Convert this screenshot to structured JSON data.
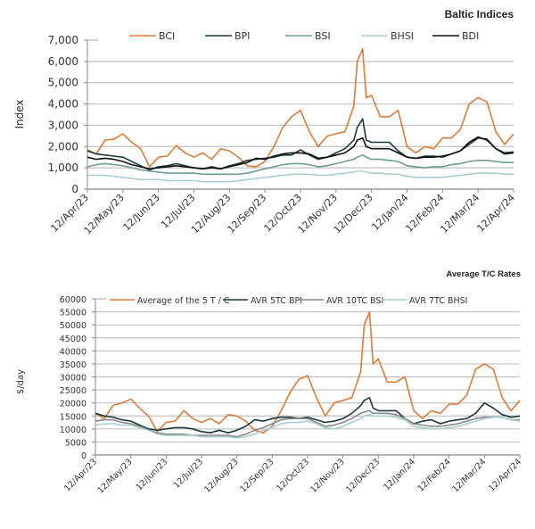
{
  "chart_data": [
    {
      "type": "line",
      "title": "Baltic Indices",
      "xlabel": "",
      "ylabel": "Index",
      "ylim": [
        0,
        7000
      ],
      "yticks": [
        0,
        1000,
        2000,
        3000,
        4000,
        5000,
        6000,
        7000
      ],
      "ytick_labels": [
        "0",
        "1,000",
        "2,000",
        "3,000",
        "4,000",
        "5,000",
        "6,000",
        "7,000"
      ],
      "grid": true,
      "legend_position": "top",
      "x_tick_labels": [
        "12/Apr/23",
        "12/May/23",
        "12/Jun/23",
        "12/Jul/23",
        "12/Aug/23",
        "12/Sep/23",
        "12/Oct/23",
        "12/Nov/23",
        "12/Dec/23",
        "12/Jan/24",
        "12/Feb/24",
        "12/Mar/24",
        "12/Apr/24"
      ],
      "x": [
        0,
        0.25,
        0.5,
        0.75,
        1,
        1.25,
        1.5,
        1.75,
        2,
        2.25,
        2.5,
        2.75,
        3,
        3.25,
        3.5,
        3.75,
        4,
        4.25,
        4.5,
        4.75,
        5,
        5.25,
        5.5,
        5.75,
        6,
        6.25,
        6.5,
        6.75,
        7,
        7.25,
        7.5,
        7.6,
        7.75,
        7.85,
        8,
        8.25,
        8.5,
        8.75,
        9,
        9.25,
        9.5,
        9.75,
        10,
        10.25,
        10.5,
        10.75,
        11,
        11.25,
        11.5,
        11.75,
        12
      ],
      "series": [
        {
          "name": "BCI",
          "color": "#e07b39",
          "values": [
            1850,
            1650,
            2300,
            2350,
            2600,
            2200,
            1900,
            1050,
            1500,
            1550,
            2050,
            1700,
            1500,
            1700,
            1400,
            1900,
            1800,
            1500,
            1100,
            1050,
            1300,
            2000,
            2900,
            3400,
            3700,
            2700,
            2000,
            2500,
            2600,
            2700,
            3900,
            6000,
            6600,
            4300,
            4400,
            3400,
            3400,
            3700,
            2000,
            1700,
            2000,
            1900,
            2400,
            2400,
            2800,
            4000,
            4300,
            4100,
            2700,
            2100,
            2600
          ]
        },
        {
          "name": "BPI",
          "color": "#1b3a3a",
          "values": [
            1800,
            1650,
            1600,
            1550,
            1500,
            1300,
            1100,
            900,
            1050,
            1100,
            1200,
            1100,
            1000,
            950,
            1050,
            950,
            1100,
            1200,
            1350,
            1400,
            1450,
            1500,
            1600,
            1600,
            1850,
            1600,
            1400,
            1500,
            1700,
            1900,
            2300,
            2900,
            3300,
            2300,
            2200,
            2200,
            2200,
            1800,
            1500,
            1450,
            1550,
            1550,
            1500,
            1650,
            1800,
            2100,
            2400,
            2350,
            1900,
            1700,
            1750
          ]
        },
        {
          "name": "BSI",
          "color": "#6e9c96",
          "values": [
            1050,
            1150,
            1200,
            1150,
            1100,
            1000,
            900,
            850,
            800,
            750,
            750,
            750,
            750,
            700,
            700,
            700,
            700,
            700,
            750,
            850,
            950,
            1050,
            1150,
            1200,
            1200,
            1150,
            1050,
            1100,
            1200,
            1300,
            1400,
            1500,
            1600,
            1500,
            1400,
            1400,
            1350,
            1300,
            1100,
            1050,
            1000,
            1050,
            1050,
            1150,
            1200,
            1300,
            1350,
            1350,
            1300,
            1250,
            1250
          ]
        },
        {
          "name": "BHSI",
          "color": "#a7cfcb",
          "values": [
            650,
            650,
            650,
            600,
            550,
            500,
            450,
            450,
            450,
            400,
            400,
            400,
            400,
            350,
            350,
            350,
            350,
            400,
            450,
            500,
            550,
            600,
            650,
            700,
            700,
            700,
            650,
            650,
            700,
            750,
            800,
            850,
            850,
            800,
            750,
            750,
            700,
            700,
            600,
            550,
            550,
            550,
            550,
            600,
            650,
            700,
            750,
            750,
            750,
            700,
            700
          ]
        },
        {
          "name": "BDI",
          "color": "#111111",
          "values": [
            1500,
            1400,
            1450,
            1400,
            1300,
            1150,
            1050,
            950,
            1000,
            1050,
            1100,
            1050,
            1000,
            950,
            1000,
            950,
            1050,
            1150,
            1250,
            1450,
            1400,
            1550,
            1650,
            1700,
            1700,
            1650,
            1450,
            1500,
            1600,
            1700,
            2000,
            2300,
            2400,
            2000,
            1900,
            1900,
            1900,
            1700,
            1500,
            1450,
            1500,
            1500,
            1550,
            1650,
            1800,
            2200,
            2450,
            2300,
            1900,
            1650,
            1700
          ]
        }
      ]
    },
    {
      "type": "line",
      "title": "Average T/C Rates",
      "xlabel": "",
      "ylabel": "$/day",
      "ylim": [
        0,
        60000
      ],
      "yticks": [
        0,
        5000,
        10000,
        15000,
        20000,
        25000,
        30000,
        35000,
        40000,
        45000,
        50000,
        55000,
        60000
      ],
      "ytick_labels": [
        "0",
        "5000",
        "10000",
        "15000",
        "20000",
        "25000",
        "30000",
        "35000",
        "40000",
        "45000",
        "50000",
        "55000",
        "60000"
      ],
      "grid": true,
      "legend_position": "top",
      "x_tick_labels": [
        "12/Apr/23",
        "12/May/23",
        "12/Jun/23",
        "12/Jul/23",
        "12/Aug/23",
        "12/Sep/23",
        "12/Oct/23",
        "12/Nov/23",
        "12/Dec/23",
        "12/Jan/24",
        "12/Feb/24",
        "12/Mar/24",
        "12/Apr/24"
      ],
      "x": [
        0,
        0.25,
        0.5,
        0.75,
        1,
        1.25,
        1.5,
        1.75,
        2,
        2.25,
        2.5,
        2.75,
        3,
        3.25,
        3.5,
        3.75,
        4,
        4.25,
        4.5,
        4.75,
        5,
        5.25,
        5.5,
        5.75,
        6,
        6.25,
        6.5,
        6.75,
        7,
        7.25,
        7.5,
        7.6,
        7.75,
        7.85,
        8,
        8.25,
        8.5,
        8.75,
        9,
        9.25,
        9.5,
        9.75,
        10,
        10.25,
        10.5,
        10.75,
        11,
        11.25,
        11.5,
        11.75,
        12
      ],
      "series": [
        {
          "name": "Average of the 5 T / C",
          "color": "#e07b39",
          "values": [
            16000,
            14000,
            19000,
            20000,
            21500,
            18000,
            15000,
            9000,
            12500,
            13000,
            17000,
            14000,
            12500,
            14000,
            12000,
            15500,
            15000,
            13000,
            9500,
            8500,
            11000,
            17000,
            24000,
            29000,
            30500,
            22000,
            15000,
            20000,
            21000,
            22000,
            32000,
            50000,
            55000,
            35000,
            37000,
            28000,
            28000,
            30000,
            17000,
            14000,
            17000,
            16000,
            19500,
            19500,
            23000,
            33000,
            35000,
            33000,
            22000,
            17000,
            21000
          ]
        },
        {
          "name": "AVR 5TC BPI",
          "color": "#1b3a3a",
          "values": [
            16000,
            15000,
            14500,
            13500,
            13000,
            11500,
            10000,
            9500,
            10000,
            10500,
            10500,
            10000,
            9000,
            8500,
            9500,
            8500,
            9500,
            11000,
            13500,
            13000,
            14000,
            14500,
            14500,
            14000,
            14500,
            13500,
            12500,
            13000,
            14000,
            16000,
            19000,
            21000,
            22000,
            18000,
            17000,
            17000,
            17000,
            14000,
            12000,
            13000,
            13500,
            12000,
            13000,
            13500,
            14000,
            16000,
            20000,
            18000,
            15500,
            14500,
            15000
          ]
        },
        {
          "name": "AVR 10TC BSI",
          "color": "#888888",
          "values": [
            13000,
            13500,
            13500,
            12500,
            12000,
            11000,
            9500,
            8500,
            8000,
            8000,
            8000,
            7500,
            7500,
            7500,
            7500,
            7500,
            7000,
            8000,
            9500,
            10500,
            12000,
            13500,
            14000,
            14000,
            14000,
            12500,
            11000,
            11500,
            12500,
            14000,
            16000,
            16500,
            17000,
            16000,
            16000,
            16000,
            15500,
            14000,
            12000,
            11500,
            11000,
            11000,
            11500,
            12000,
            13000,
            14000,
            14500,
            14500,
            14500,
            13500,
            13500
          ]
        },
        {
          "name": "AVR 7TC BHSI",
          "color": "#a7cfcb",
          "values": [
            11500,
            12000,
            12000,
            11500,
            11500,
            10500,
            9500,
            8000,
            7500,
            7500,
            7500,
            7500,
            7000,
            7000,
            7000,
            7000,
            6500,
            7000,
            8000,
            9500,
            10500,
            12000,
            12500,
            12500,
            13000,
            12000,
            10500,
            10000,
            11000,
            12500,
            14000,
            15000,
            15500,
            15000,
            15000,
            15000,
            14500,
            13500,
            11000,
            10500,
            10000,
            10000,
            10500,
            11000,
            12000,
            13000,
            14000,
            14500,
            14500,
            13500,
            13000
          ]
        }
      ]
    }
  ]
}
